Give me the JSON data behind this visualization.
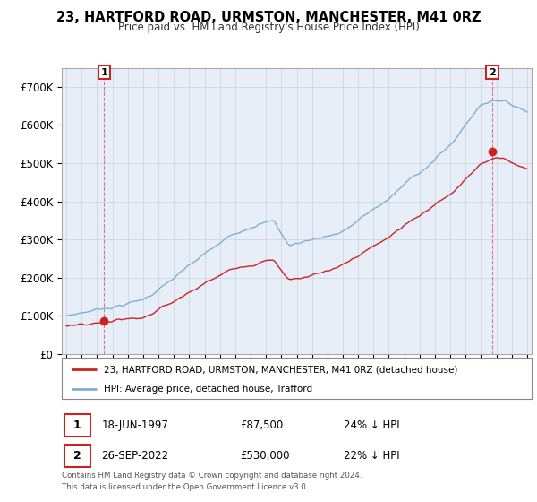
{
  "title": "23, HARTFORD ROAD, URMSTON, MANCHESTER, M41 0RZ",
  "subtitle": "Price paid vs. HM Land Registry's House Price Index (HPI)",
  "purchase1_date": "18-JUN-1997",
  "purchase1_price": 87500,
  "purchase1_pct": "24% ↓ HPI",
  "purchase2_date": "26-SEP-2022",
  "purchase2_price": 530000,
  "purchase2_pct": "22% ↓ HPI",
  "legend_label1": "23, HARTFORD ROAD, URMSTON, MANCHESTER, M41 0RZ (detached house)",
  "legend_label2": "HPI: Average price, detached house, Trafford",
  "footer": "Contains HM Land Registry data © Crown copyright and database right 2024.\nThis data is licensed under the Open Government Licence v3.0.",
  "line1_color": "#cc2222",
  "line2_color": "#7ab0d4",
  "marker_color": "#cc2222",
  "bg_color": "#e8eef8",
  "fig_bg": "#ffffff",
  "ylim": [
    0,
    750000
  ],
  "yticks": [
    0,
    100000,
    200000,
    300000,
    400000,
    500000,
    600000,
    700000
  ],
  "ytick_labels": [
    "£0",
    "£100K",
    "£200K",
    "£300K",
    "£400K",
    "£500K",
    "£600K",
    "£700K"
  ],
  "purchase1_x": 1997.46,
  "purchase2_x": 2022.74,
  "xlim_left": 1994.7,
  "xlim_right": 2025.3
}
